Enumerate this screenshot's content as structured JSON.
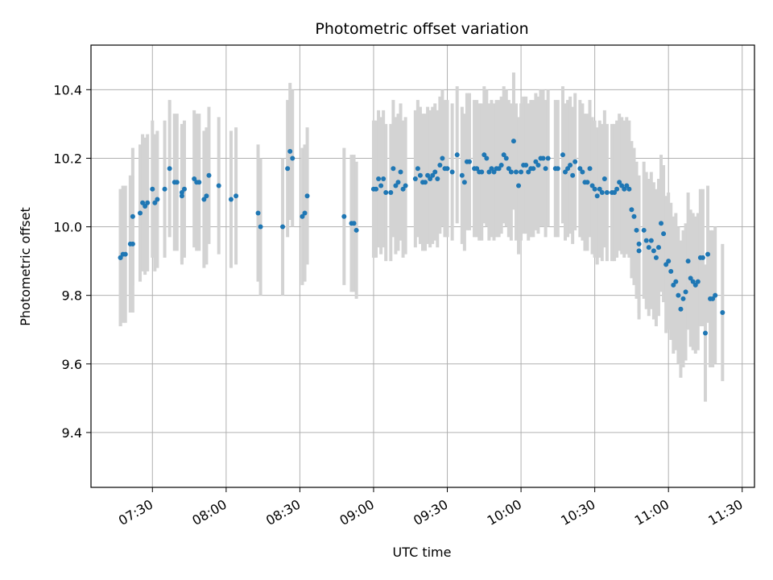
{
  "chart_data": {
    "type": "scatter",
    "title": "Photometric offset variation",
    "xlabel": "UTC time",
    "ylabel": "Photometric offset",
    "xlim": [
      "07:05",
      "11:35"
    ],
    "ylim": [
      9.24,
      10.53
    ],
    "grid": true,
    "colors": {
      "points": "#1f77b4",
      "errorbars": "#d3d3d3",
      "grid": "#b0b0b0",
      "axis": "#000000"
    },
    "x_ticks": [
      "07:30",
      "08:00",
      "08:30",
      "09:00",
      "09:30",
      "10:00",
      "10:30",
      "11:00",
      "11:30"
    ],
    "y_ticks": [
      "9.4",
      "9.6",
      "9.8",
      "10.0",
      "10.2",
      "10.4"
    ],
    "series": [
      {
        "error_half_width": 0.2,
        "points": [
          [
            "07:17",
            9.91
          ],
          [
            "07:17",
            9.91
          ],
          [
            "07:18",
            9.92
          ],
          [
            "07:19",
            9.92
          ],
          [
            "07:21",
            9.95
          ],
          [
            "07:22",
            9.95
          ],
          [
            "07:22",
            10.03
          ],
          [
            "07:25",
            10.04
          ],
          [
            "07:26",
            10.07
          ],
          [
            "07:27",
            10.06
          ],
          [
            "07:28",
            10.07
          ],
          [
            "07:30",
            10.11
          ],
          [
            "07:31",
            10.07
          ],
          [
            "07:32",
            10.08
          ],
          [
            "07:35",
            10.11
          ],
          [
            "07:37",
            10.17
          ],
          [
            "07:39",
            10.13
          ],
          [
            "07:40",
            10.13
          ],
          [
            "07:42",
            10.09
          ],
          [
            "07:42",
            10.1
          ],
          [
            "07:43",
            10.11
          ],
          [
            "07:47",
            10.14
          ],
          [
            "07:48",
            10.13
          ],
          [
            "07:49",
            10.13
          ],
          [
            "07:51",
            10.08
          ],
          [
            "07:52",
            10.09
          ],
          [
            "07:53",
            10.15
          ],
          [
            "07:57",
            10.12
          ],
          [
            "08:02",
            10.08
          ],
          [
            "08:04",
            10.09
          ],
          [
            "08:13",
            10.04
          ],
          [
            "08:14",
            10.0
          ],
          [
            "08:23",
            10.0
          ],
          [
            "08:25",
            10.17
          ],
          [
            "08:26",
            10.22
          ],
          [
            "08:27",
            10.2
          ],
          [
            "08:31",
            10.03
          ],
          [
            "08:32",
            10.04
          ],
          [
            "08:33",
            10.09
          ],
          [
            "08:48",
            10.03
          ],
          [
            "08:51",
            10.01
          ],
          [
            "08:52",
            10.01
          ],
          [
            "08:53",
            9.99
          ],
          [
            "09:00",
            10.11
          ],
          [
            "09:01",
            10.11
          ],
          [
            "09:02",
            10.14
          ],
          [
            "09:03",
            10.12
          ],
          [
            "09:04",
            10.14
          ],
          [
            "09:05",
            10.1
          ],
          [
            "09:07",
            10.1
          ],
          [
            "09:08",
            10.17
          ],
          [
            "09:09",
            10.12
          ],
          [
            "09:10",
            10.13
          ],
          [
            "09:11",
            10.16
          ],
          [
            "09:12",
            10.11
          ],
          [
            "09:13",
            10.12
          ],
          [
            "09:17",
            10.14
          ],
          [
            "09:18",
            10.17
          ],
          [
            "09:19",
            10.15
          ],
          [
            "09:20",
            10.13
          ],
          [
            "09:21",
            10.13
          ],
          [
            "09:22",
            10.15
          ],
          [
            "09:23",
            10.14
          ],
          [
            "09:24",
            10.15
          ],
          [
            "09:25",
            10.16
          ],
          [
            "09:26",
            10.14
          ],
          [
            "09:27",
            10.18
          ],
          [
            "09:28",
            10.2
          ],
          [
            "09:29",
            10.17
          ],
          [
            "09:30",
            10.17
          ],
          [
            "09:32",
            10.16
          ],
          [
            "09:34",
            10.21
          ],
          [
            "09:36",
            10.15
          ],
          [
            "09:37",
            10.13
          ],
          [
            "09:38",
            10.19
          ],
          [
            "09:39",
            10.19
          ],
          [
            "09:41",
            10.17
          ],
          [
            "09:42",
            10.17
          ],
          [
            "09:43",
            10.16
          ],
          [
            "09:44",
            10.16
          ],
          [
            "09:45",
            10.21
          ],
          [
            "09:46",
            10.2
          ],
          [
            "09:47",
            10.16
          ],
          [
            "09:48",
            10.17
          ],
          [
            "09:49",
            10.16
          ],
          [
            "09:50",
            10.17
          ],
          [
            "09:51",
            10.17
          ],
          [
            "09:52",
            10.18
          ],
          [
            "09:53",
            10.21
          ],
          [
            "09:54",
            10.2
          ],
          [
            "09:55",
            10.17
          ],
          [
            "09:56",
            10.16
          ],
          [
            "09:57",
            10.25
          ],
          [
            "09:58",
            10.16
          ],
          [
            "09:59",
            10.12
          ],
          [
            "10:00",
            10.16
          ],
          [
            "10:01",
            10.18
          ],
          [
            "10:02",
            10.18
          ],
          [
            "10:03",
            10.16
          ],
          [
            "10:04",
            10.17
          ],
          [
            "10:05",
            10.17
          ],
          [
            "10:06",
            10.19
          ],
          [
            "10:07",
            10.18
          ],
          [
            "10:08",
            10.2
          ],
          [
            "10:09",
            10.2
          ],
          [
            "10:10",
            10.17
          ],
          [
            "10:11",
            10.2
          ],
          [
            "10:14",
            10.17
          ],
          [
            "10:15",
            10.17
          ],
          [
            "10:17",
            10.21
          ],
          [
            "10:18",
            10.16
          ],
          [
            "10:19",
            10.17
          ],
          [
            "10:20",
            10.18
          ],
          [
            "10:21",
            10.15
          ],
          [
            "10:22",
            10.19
          ],
          [
            "10:24",
            10.17
          ],
          [
            "10:25",
            10.16
          ],
          [
            "10:26",
            10.13
          ],
          [
            "10:27",
            10.13
          ],
          [
            "10:28",
            10.17
          ],
          [
            "10:29",
            10.12
          ],
          [
            "10:30",
            10.11
          ],
          [
            "10:31",
            10.09
          ],
          [
            "10:32",
            10.11
          ],
          [
            "10:33",
            10.1
          ],
          [
            "10:34",
            10.14
          ],
          [
            "10:35",
            10.1
          ],
          [
            "10:37",
            10.1
          ],
          [
            "10:38",
            10.1
          ],
          [
            "10:39",
            10.11
          ],
          [
            "10:40",
            10.13
          ],
          [
            "10:41",
            10.12
          ],
          [
            "10:42",
            10.11
          ],
          [
            "10:43",
            10.12
          ],
          [
            "10:44",
            10.11
          ],
          [
            "10:45",
            10.05
          ],
          [
            "10:46",
            10.03
          ],
          [
            "10:47",
            9.99
          ],
          [
            "10:48",
            9.95
          ],
          [
            "10:48",
            9.93
          ],
          [
            "10:50",
            9.99
          ],
          [
            "10:51",
            9.96
          ],
          [
            "10:52",
            9.94
          ],
          [
            "10:53",
            9.96
          ],
          [
            "10:54",
            9.93
          ],
          [
            "10:55",
            9.91
          ],
          [
            "10:56",
            9.94
          ],
          [
            "10:57",
            10.01
          ],
          [
            "10:58",
            9.98
          ],
          [
            "10:59",
            9.89
          ],
          [
            "11:00",
            9.9
          ],
          [
            "11:01",
            9.87
          ],
          [
            "11:02",
            9.83
          ],
          [
            "11:03",
            9.84
          ],
          [
            "11:04",
            9.8
          ],
          [
            "11:05",
            9.76
          ],
          [
            "11:06",
            9.79
          ],
          [
            "11:07",
            9.81
          ],
          [
            "11:08",
            9.9
          ],
          [
            "11:09",
            9.85
          ],
          [
            "11:10",
            9.84
          ],
          [
            "11:11",
            9.83
          ],
          [
            "11:12",
            9.84
          ],
          [
            "11:13",
            9.91
          ],
          [
            "11:14",
            9.91
          ],
          [
            "11:15",
            9.69
          ],
          [
            "11:16",
            9.92
          ],
          [
            "11:17",
            9.79
          ],
          [
            "11:18",
            9.79
          ],
          [
            "11:19",
            9.8
          ],
          [
            "11:22",
            9.75
          ]
        ]
      }
    ]
  }
}
